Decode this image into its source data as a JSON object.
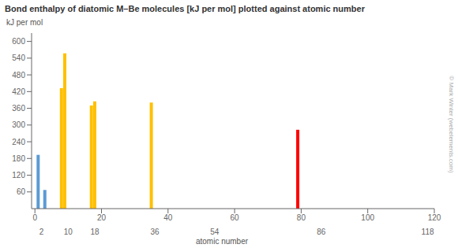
{
  "chart_data": {
    "type": "bar",
    "title": "Bond enthalpy of diatomic M–Be molecules [kJ per mol] plotted against atomic number",
    "ylabel": "kJ per mol",
    "xlabel": "atomic number",
    "x": [
      1,
      3,
      8,
      9,
      17,
      18,
      35,
      79
    ],
    "values": [
      193,
      67,
      432,
      557,
      370,
      385,
      381,
      283
    ],
    "colors": [
      "#5b9bd5",
      "#5b9bd5",
      "#ffc000",
      "#ffc000",
      "#ffc000",
      "#ffc000",
      "#ffc000",
      "#ff0000"
    ],
    "xlim": [
      -1,
      120
    ],
    "ylim": [
      0,
      630
    ],
    "xticks": [
      0,
      20,
      40,
      60,
      80,
      100,
      120
    ],
    "yticks": [
      60,
      120,
      180,
      240,
      300,
      360,
      420,
      480,
      540,
      600
    ],
    "x2ticks": [
      2,
      10,
      18,
      36,
      54,
      86,
      118
    ],
    "grid": false,
    "annotations": [
      "© Mark Winter (webelements.com)"
    ]
  }
}
